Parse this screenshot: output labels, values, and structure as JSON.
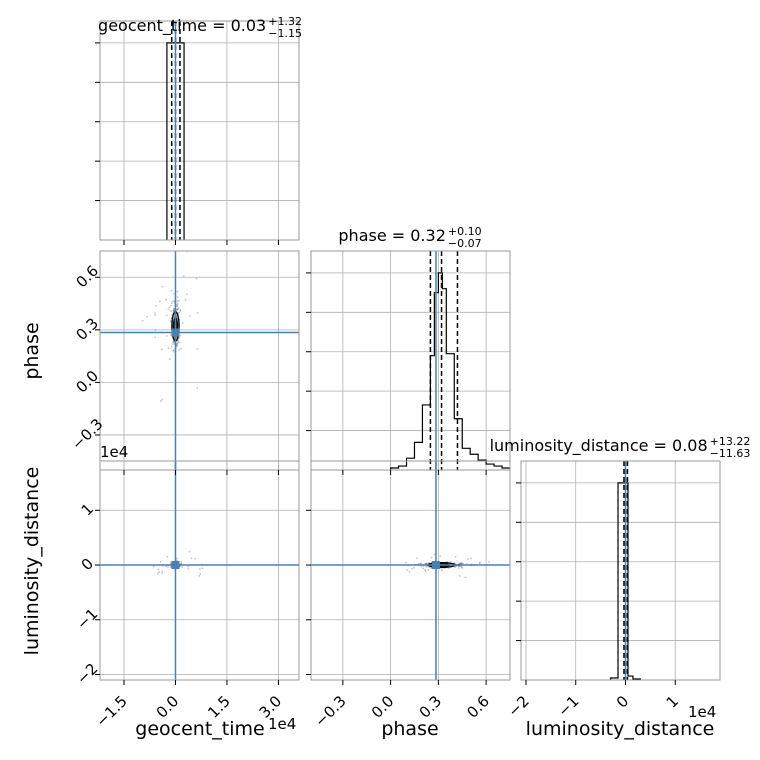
{
  "chart_data": {
    "type": "corner",
    "parameters": [
      "geocent_time",
      "phase",
      "luminosity_distance"
    ],
    "axis_labels": [
      "geocent_time",
      "phase",
      "luminosity_distance"
    ],
    "offset_labels": {
      "geocent_time": "1e4",
      "luminosity_distance": "1e4"
    },
    "ranges": {
      "geocent_time": [
        -2.2,
        3.6
      ],
      "phase": [
        -0.5,
        0.75
      ],
      "luminosity_distance": [
        -2.1,
        1.9
      ]
    },
    "ticks": {
      "geocent_time": {
        "values": [
          -1.5,
          0.0,
          1.5,
          3.0
        ],
        "labels": [
          "−1.5",
          "0.0",
          "1.5",
          "3.0"
        ]
      },
      "phase": {
        "values": [
          -0.3,
          0.0,
          0.3,
          0.6
        ],
        "labels": [
          "−0.3",
          "0.0",
          "0.3",
          "0.6"
        ]
      },
      "luminosity_distance": {
        "values": [
          -2,
          -1,
          0,
          1
        ],
        "labels": [
          "−2",
          "−1",
          "0",
          "1"
        ]
      }
    },
    "titles": [
      {
        "param": "geocent_time",
        "name": "geocent_time",
        "median": "0.03",
        "plus": "+1.32",
        "minus": "−1.15"
      },
      {
        "param": "phase",
        "name": "phase",
        "median": "0.32",
        "plus": "+0.10",
        "minus": "−0.07"
      },
      {
        "param": "luminosity_distance",
        "name": "luminosity_distance",
        "median": "0.08",
        "plus": "+13.22",
        "minus": "−11.63"
      }
    ],
    "truths": {
      "geocent_time": 0.0,
      "phase": 0.285,
      "luminosity_distance": 0.0
    },
    "quantiles": {
      "geocent_time": [
        -0.11,
        0.0,
        0.13
      ],
      "phase": [
        0.25,
        0.32,
        0.42
      ],
      "luminosity_distance": [
        -0.03,
        0.0,
        0.04
      ]
    },
    "histograms": {
      "geocent_time": {
        "edges": [
          -0.25,
          0.0,
          0.25
        ],
        "counts": [
          1.0,
          1.0
        ]
      },
      "phase": {
        "edges": [
          0.0,
          0.05,
          0.1,
          0.15,
          0.2,
          0.25,
          0.275,
          0.3,
          0.325,
          0.35,
          0.4,
          0.45,
          0.5,
          0.55,
          0.6,
          0.65,
          0.7,
          0.75
        ],
        "counts": [
          0.01,
          0.02,
          0.06,
          0.14,
          0.33,
          0.58,
          0.9,
          1.0,
          0.92,
          0.59,
          0.26,
          0.11,
          0.08,
          0.05,
          0.03,
          0.02,
          0.01
        ]
      },
      "luminosity_distance": {
        "edges": [
          -0.3,
          -0.15,
          -0.05,
          0.05,
          0.15,
          0.3
        ],
        "counts": [
          0.01,
          1.0,
          1.0,
          0.02,
          0.005
        ]
      }
    },
    "grid": true
  }
}
